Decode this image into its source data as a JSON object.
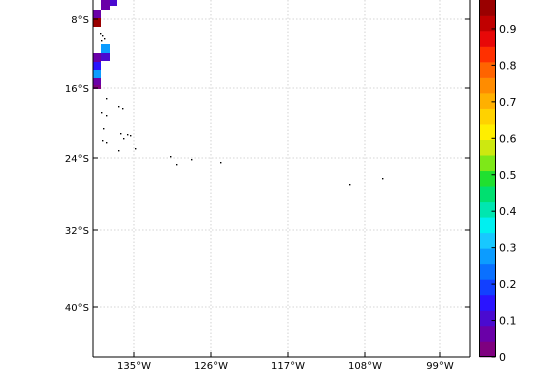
{
  "map": {
    "lat_labels": [
      "8°S",
      "16°S",
      "24°S",
      "32°S",
      "40°S"
    ],
    "lon_labels": [
      "135°W",
      "126°W",
      "117°W",
      "108°W",
      "99°W"
    ],
    "colors": {
      "grid": "#c8c8c8",
      "frame": "#000000",
      "land": "#000000",
      "background": "#ffffff"
    },
    "data_cells": [
      {
        "value": 0.12
      },
      {
        "value": 0.05
      },
      {
        "value": 0.08
      },
      {
        "value": 0.97
      },
      {
        "value": 0.28
      },
      {
        "value": 0.1
      },
      {
        "value": 0.06
      },
      {
        "value": 0.16
      },
      {
        "value": 0.3
      },
      {
        "value": 0.08
      },
      {
        "value": 0.04
      }
    ]
  },
  "colorbar": {
    "tick_labels": [
      "0",
      "0.1",
      "0.2",
      "0.3",
      "0.4",
      "0.5",
      "0.6",
      "0.7",
      "0.8",
      "0.9"
    ],
    "colors": [
      "#7f0080",
      "#6a00a8",
      "#4a0ad0",
      "#2a14ff",
      "#1240ff",
      "#0a70ff",
      "#0c9cff",
      "#18c8ff",
      "#00f0f0",
      "#00e6b0",
      "#00e070",
      "#20e030",
      "#7ee818",
      "#cde810",
      "#ffee00",
      "#ffd200",
      "#ffb000",
      "#ff8c00",
      "#ff6400",
      "#ff3000",
      "#e80808",
      "#c00000",
      "#9a0000"
    ]
  }
}
